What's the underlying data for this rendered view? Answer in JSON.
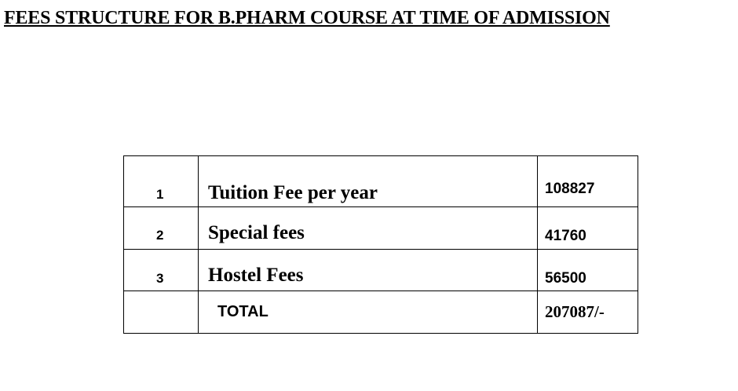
{
  "header": {
    "title": "FEES STRUCTURE FOR B.PHARM COURSE AT TIME OF ADMISSION"
  },
  "table": {
    "rows": [
      {
        "no": "1",
        "item": "Tuition Fee per year",
        "amount": "108827"
      },
      {
        "no": "2",
        "item": "Special fees",
        "amount": "41760"
      },
      {
        "no": "3",
        "item": "Hostel Fees",
        "amount": "56500"
      }
    ],
    "total": {
      "label": "TOTAL",
      "amount": "207087/-"
    }
  }
}
